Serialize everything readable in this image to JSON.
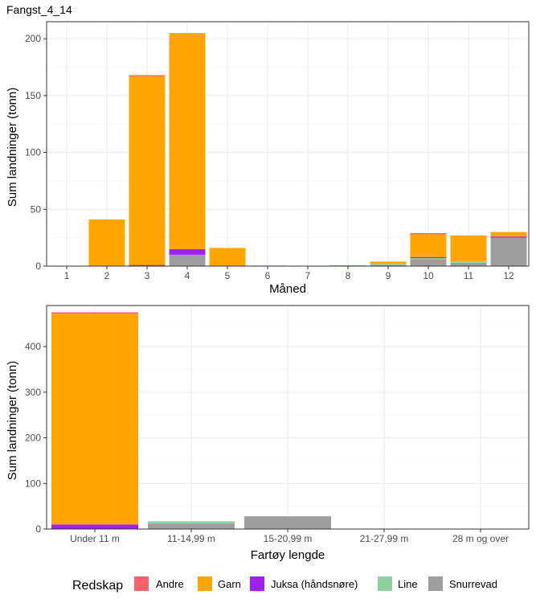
{
  "title": "Fangst_4_14",
  "colors": {
    "Andre": "#F8626C",
    "Garn": "#FFA500",
    "Juksa (håndsnøre)": "#A020F0",
    "Line": "#8FD19E",
    "Snurrevad": "#9E9E9E"
  },
  "legend": {
    "title": "Redskap",
    "items": [
      "Andre",
      "Garn",
      "Juksa (håndsnøre)",
      "Line",
      "Snurrevad"
    ]
  },
  "chart_data": [
    {
      "type": "bar",
      "stacked": true,
      "xlabel": "Måned",
      "ylabel": "Sum landninger (tonn)",
      "ylim": [
        0,
        215
      ],
      "yticks": [
        0,
        50,
        100,
        150,
        200
      ],
      "categories": [
        "1",
        "2",
        "3",
        "4",
        "5",
        "6",
        "7",
        "8",
        "9",
        "10",
        "11",
        "12"
      ],
      "series": [
        {
          "name": "Snurrevad",
          "values": [
            0,
            0,
            0,
            10,
            0,
            0,
            0,
            0,
            1,
            6,
            3,
            25
          ]
        },
        {
          "name": "Line",
          "values": [
            0,
            0,
            0,
            0,
            0,
            0.5,
            0.3,
            0.8,
            1,
            1,
            1,
            0
          ]
        },
        {
          "name": "Juksa (håndsnøre)",
          "values": [
            0,
            0,
            1,
            5,
            0,
            0,
            0,
            0,
            0,
            1,
            0,
            1
          ]
        },
        {
          "name": "Garn",
          "values": [
            0,
            41,
            166,
            190,
            16,
            0,
            0,
            0,
            2,
            20,
            23,
            4
          ]
        },
        {
          "name": "Andre",
          "values": [
            0,
            0,
            1,
            0,
            0,
            0,
            0,
            0,
            0,
            1,
            0,
            0
          ]
        }
      ]
    },
    {
      "type": "bar",
      "stacked": true,
      "xlabel": "Fartøy lengde",
      "ylabel": "Sum landninger (tonn)",
      "ylim": [
        0,
        490
      ],
      "yticks": [
        0,
        100,
        200,
        300,
        400
      ],
      "categories": [
        "Under 11 m",
        "11-14,99 m",
        "15-20,99 m",
        "21-27,99 m",
        "28 m og over"
      ],
      "series": [
        {
          "name": "Snurrevad",
          "values": [
            0,
            12,
            28,
            0,
            0
          ]
        },
        {
          "name": "Line",
          "values": [
            0,
            5,
            0,
            1,
            0
          ]
        },
        {
          "name": "Juksa (håndsnøre)",
          "values": [
            10,
            0,
            0,
            0,
            0
          ]
        },
        {
          "name": "Garn",
          "values": [
            462,
            0,
            0,
            0,
            0
          ]
        },
        {
          "name": "Andre",
          "values": [
            3,
            0,
            0,
            0,
            0
          ]
        }
      ]
    }
  ]
}
